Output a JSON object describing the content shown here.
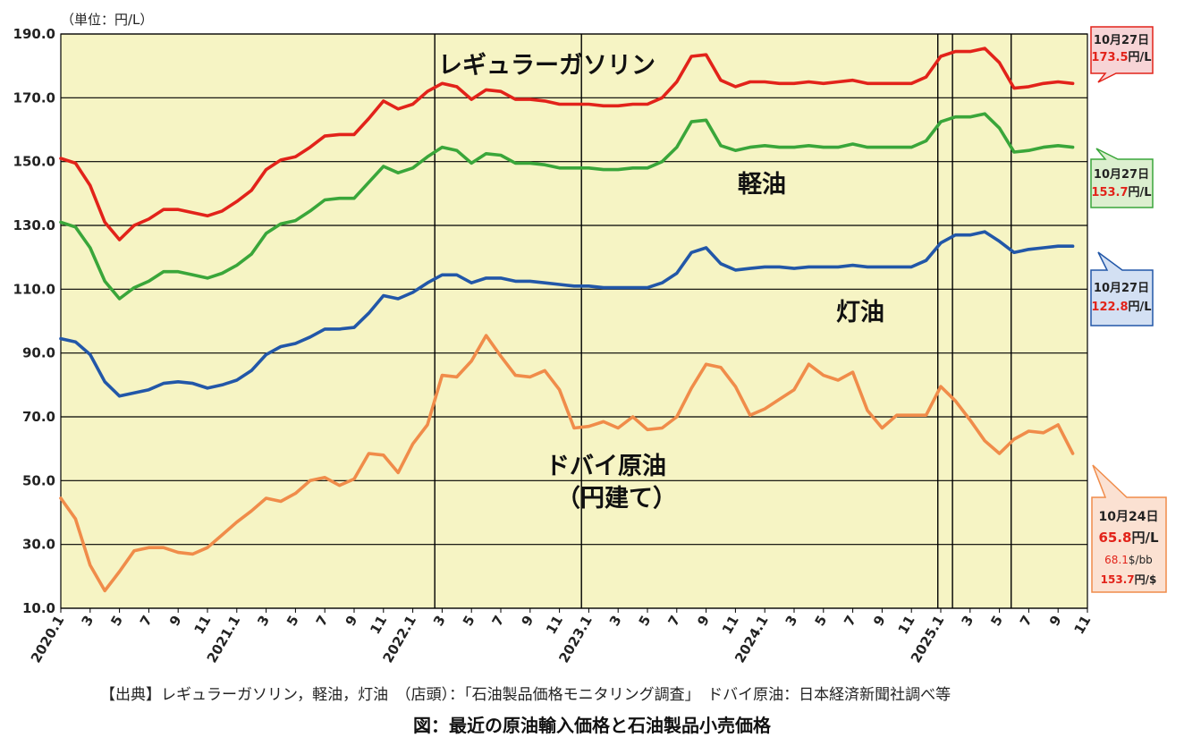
{
  "unit": "（単位：円/L）",
  "source": "【出典】レギュラーガソリン，軽油，灯油　（店頭）：「石油製品価格モニタリング調査」　ドバイ原油：日本経済新聞社調べ等",
  "caption": "図：最近の原油輸入価格と石油製品小売価格",
  "chart_data": {
    "type": "line",
    "title": "最近の原油輸入価格と石油製品小売価格",
    "ylabel": "円/L",
    "ylim": [
      10,
      190
    ],
    "yticks": [
      "10.0",
      "30.0",
      "50.0",
      "70.0",
      "90.0",
      "110.0",
      "130.0",
      "150.0",
      "170.0",
      "190.0"
    ],
    "xticks": [
      {
        "i": 0,
        "label": "2020.1"
      },
      {
        "i": 2,
        "label": "3"
      },
      {
        "i": 4,
        "label": "5"
      },
      {
        "i": 6,
        "label": "7"
      },
      {
        "i": 8,
        "label": "9"
      },
      {
        "i": 10,
        "label": "11"
      },
      {
        "i": 12,
        "label": "2021.1"
      },
      {
        "i": 14,
        "label": "3"
      },
      {
        "i": 16,
        "label": "5"
      },
      {
        "i": 18,
        "label": "7"
      },
      {
        "i": 20,
        "label": "9"
      },
      {
        "i": 22,
        "label": "11"
      },
      {
        "i": 24,
        "label": "2022.1"
      },
      {
        "i": 26,
        "label": "3"
      },
      {
        "i": 28,
        "label": "5"
      },
      {
        "i": 30,
        "label": "7"
      },
      {
        "i": 32,
        "label": "9"
      },
      {
        "i": 34,
        "label": "11"
      },
      {
        "i": 36,
        "label": "2023.1"
      },
      {
        "i": 38,
        "label": "3"
      },
      {
        "i": 40,
        "label": "5"
      },
      {
        "i": 42,
        "label": "7"
      },
      {
        "i": 44,
        "label": "9"
      },
      {
        "i": 46,
        "label": "11"
      },
      {
        "i": 48,
        "label": "2024.1"
      },
      {
        "i": 50,
        "label": "3"
      },
      {
        "i": 52,
        "label": "5"
      },
      {
        "i": 54,
        "label": "7"
      },
      {
        "i": 56,
        "label": "9"
      },
      {
        "i": 58,
        "label": "11"
      },
      {
        "i": 60,
        "label": "2025.1"
      },
      {
        "i": 62,
        "label": "3"
      },
      {
        "i": 64,
        "label": "5"
      },
      {
        "i": 66,
        "label": "7"
      },
      {
        "i": 68,
        "label": "9"
      },
      {
        "i": 70,
        "label": "11"
      }
    ],
    "x_max_index": 70,
    "vlines": [
      25.5,
      35.5,
      59.8,
      60.8,
      64.8
    ],
    "series": [
      {
        "name": "レギュラーガソリン",
        "color": "#e2231a",
        "values": [
          151.0,
          149.5,
          142.5,
          131.0,
          125.5,
          130.0,
          132.0,
          135.0,
          135.0,
          134.0,
          133.0,
          134.5,
          137.5,
          141.0,
          147.5,
          150.5,
          151.5,
          154.5,
          158.0,
          158.5,
          158.5,
          163.5,
          169.0,
          166.5,
          168.0,
          172.0,
          174.5,
          173.5,
          169.5,
          172.5,
          172.0,
          169.5,
          169.5,
          169.0,
          168.0,
          168.0,
          168.0,
          167.5,
          167.5,
          168.0,
          168.0,
          170.0,
          175.0,
          183.0,
          183.5,
          175.5,
          173.5,
          175.0,
          175.0,
          174.5,
          174.5,
          175.0,
          174.5,
          175.0,
          175.5,
          174.5,
          174.5,
          174.5,
          174.5,
          176.5,
          183.0,
          184.5,
          184.5,
          185.5,
          181.0,
          173.0,
          173.5,
          174.5,
          175.0,
          174.5
        ]
      },
      {
        "name": "軽油",
        "color": "#3aa63a",
        "values": [
          131.0,
          129.5,
          123.0,
          112.5,
          107.0,
          110.5,
          112.5,
          115.5,
          115.5,
          114.5,
          113.5,
          115.0,
          117.5,
          121.0,
          127.5,
          130.5,
          131.5,
          134.5,
          138.0,
          138.5,
          138.5,
          143.5,
          148.5,
          146.5,
          148.0,
          151.5,
          154.5,
          153.5,
          149.5,
          152.5,
          152.0,
          149.5,
          149.5,
          149.0,
          148.0,
          148.0,
          148.0,
          147.5,
          147.5,
          148.0,
          148.0,
          150.0,
          154.5,
          162.5,
          163.0,
          155.0,
          153.5,
          154.5,
          155.0,
          154.5,
          154.5,
          155.0,
          154.5,
          154.5,
          155.5,
          154.5,
          154.5,
          154.5,
          154.5,
          156.5,
          162.5,
          164.0,
          164.0,
          165.0,
          160.5,
          153.0,
          153.5,
          154.5,
          155.0,
          154.5
        ]
      },
      {
        "name": "灯油",
        "color": "#2257a8",
        "values": [
          94.5,
          93.5,
          89.5,
          81.0,
          76.5,
          77.5,
          78.5,
          80.5,
          81.0,
          80.5,
          79.0,
          80.0,
          81.5,
          84.5,
          89.5,
          92.0,
          93.0,
          95.0,
          97.5,
          97.5,
          98.0,
          102.5,
          108.0,
          107.0,
          109.0,
          112.0,
          114.5,
          114.5,
          112.0,
          113.5,
          113.5,
          112.5,
          112.5,
          112.0,
          111.5,
          111.0,
          111.0,
          110.5,
          110.5,
          110.5,
          110.5,
          112.0,
          115.0,
          121.5,
          123.0,
          118.0,
          116.0,
          116.5,
          117.0,
          117.0,
          116.5,
          117.0,
          117.0,
          117.0,
          117.5,
          117.0,
          117.0,
          117.0,
          117.0,
          119.0,
          124.5,
          127.0,
          127.0,
          128.0,
          125.0,
          121.5,
          122.5,
          123.0,
          123.5,
          123.5
        ]
      },
      {
        "name": "ドバイ原油",
        "color": "#f08c4a",
        "values": [
          44.5,
          38.0,
          23.5,
          15.5,
          21.5,
          28.0,
          29.0,
          29.0,
          27.5,
          27.0,
          29.0,
          33.0,
          37.0,
          40.5,
          44.5,
          43.5,
          46.0,
          50.0,
          51.0,
          48.5,
          50.5,
          58.5,
          58.0,
          52.5,
          61.5,
          67.5,
          83.0,
          82.5,
          87.5,
          95.5,
          89.0,
          83.0,
          82.5,
          84.5,
          78.5,
          66.5,
          67.0,
          68.5,
          66.5,
          70.0,
          66.0,
          66.5,
          70.0,
          79.0,
          86.5,
          85.5,
          79.5,
          70.5,
          72.5,
          75.5,
          78.5,
          86.5,
          83.0,
          81.5,
          84.0,
          72.0,
          66.5,
          70.5,
          70.5,
          70.5,
          79.5,
          75.0,
          69.0,
          62.5,
          58.5,
          63.0,
          65.5,
          65.0,
          67.5,
          58.5
        ]
      }
    ],
    "series_labels": [
      {
        "text": "レギュラーガソリン"
      },
      {
        "text": "軽油"
      },
      {
        "text": "灯油"
      },
      {
        "text": "ドバイ原油"
      },
      {
        "text": "（円建て）"
      }
    ],
    "callouts": {
      "gasoline": {
        "date": "10月27日",
        "value": "173.5",
        "unit": "円/L",
        "fill": "#f7d4d6",
        "stroke": "#e2231a"
      },
      "diesel": {
        "date": "10月27日",
        "value": "153.7",
        "unit": "円/L",
        "fill": "#dcefcf",
        "stroke": "#3aa63a"
      },
      "kerosene": {
        "date": "10月27日",
        "value": "122.8",
        "unit": "円/L",
        "fill": "#d3e0f3",
        "stroke": "#2257a8"
      },
      "crude": {
        "date": "10月24日",
        "value": "65.8",
        "unit": "円/L",
        "usd": "68.1",
        "usd_unit": "$/bb",
        "fx": "153.7",
        "fx_unit": "円/$",
        "fill": "#fbe1d2",
        "stroke": "#f08c4a"
      }
    },
    "grid": true,
    "plot_bg": "#f6f4c4",
    "accent_red": "#e2231a"
  }
}
